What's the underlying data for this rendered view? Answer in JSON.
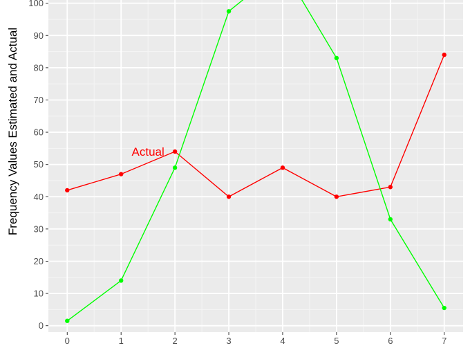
{
  "chart_data": {
    "type": "line",
    "ylabel": "Frequency Values Estimated and Actual",
    "xlabel": "",
    "x": [
      0,
      1,
      2,
      3,
      4,
      5,
      6,
      7
    ],
    "xlim": [
      -0.35,
      7.35
    ],
    "ylim": [
      -2,
      101
    ],
    "x_ticks": [
      0,
      1,
      2,
      3,
      4,
      5,
      6,
      7
    ],
    "y_ticks": [
      0,
      10,
      20,
      30,
      40,
      50,
      60,
      70,
      80,
      90,
      100
    ],
    "grid": true,
    "panel_background": "#ebebeb",
    "series": [
      {
        "name": "Actual",
        "color": "#ff0000",
        "values": [
          42,
          47,
          54,
          40,
          49,
          40,
          43,
          84
        ]
      },
      {
        "color": "#00ff00",
        "values": [
          1.5,
          14,
          49,
          97.5,
          111,
          83,
          33,
          5.5
        ]
      }
    ],
    "annotations": [
      {
        "text": "Actual",
        "x": 1.5,
        "y": 54,
        "color": "#ff0000"
      }
    ]
  }
}
